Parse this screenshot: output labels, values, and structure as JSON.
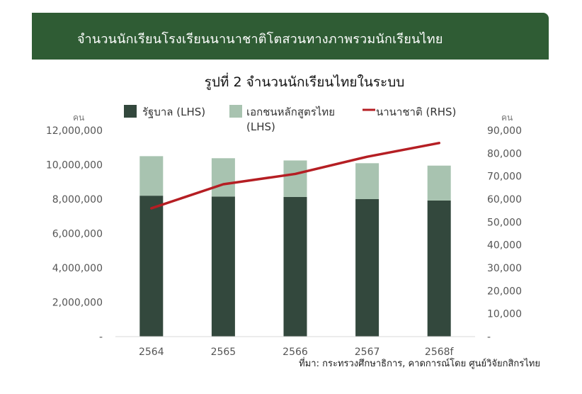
{
  "header": {
    "title": "จำนวนนักเรียนโรงเรียนนานาชาติโตสวนทางภาพรวมนักเรียนไทย"
  },
  "chart_data": {
    "type": "bar",
    "title": "รูปที่ 2 จำนวนนักเรียนไทยในระบบ",
    "categories": [
      "2564",
      "2565",
      "2566",
      "2567",
      "2568f"
    ],
    "series": [
      {
        "name": "รัฐบาล (LHS)",
        "kind": "bar",
        "axis": "left",
        "color": "#33483d",
        "values": [
          8200000,
          8150000,
          8130000,
          8000000,
          7920000
        ]
      },
      {
        "name": "เอกชนหลักสูตรไทย (LHS)",
        "kind": "bar",
        "axis": "left",
        "color": "#a8c3b0",
        "values": [
          2300000,
          2230000,
          2120000,
          2090000,
          2030000
        ]
      },
      {
        "name": "นานาชาติ (RHS)",
        "kind": "line",
        "axis": "right",
        "color": "#b51e23",
        "values": [
          56000,
          66500,
          71000,
          78500,
          84500
        ]
      }
    ],
    "ylabel": "คน",
    "ylabel_right": "คน",
    "ylim": [
      0,
      12000000
    ],
    "ylim_right": [
      0,
      90000
    ],
    "yticks": [
      "-",
      "2,000,000",
      "4,000,000",
      "6,000,000",
      "8,000,000",
      "10,000,000",
      "12,000,000"
    ],
    "yticks_right": [
      "-",
      "10,000",
      "20,000",
      "30,000",
      "40,000",
      "50,000",
      "60,000",
      "70,000",
      "80,000",
      "90,000"
    ],
    "legend_position": "top",
    "source": "ที่มา: กระทรวงศึกษาธิการ, คาดการณ์โดย ศูนย์วิจัยกสิกรไทย"
  }
}
